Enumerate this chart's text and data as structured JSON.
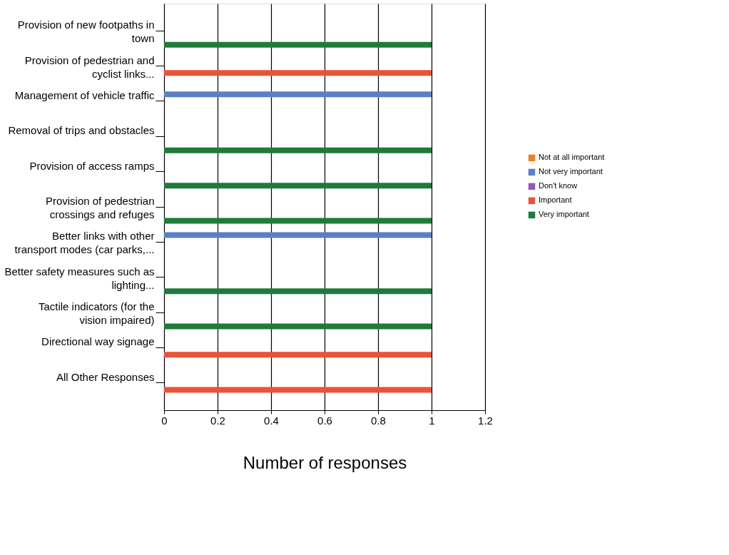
{
  "chart_data": {
    "type": "bar",
    "orientation": "horizontal",
    "xlabel": "Number of responses",
    "categories": [
      "Provision of new footpaths in town",
      "Provision of pedestrian and cyclist links...",
      "Management of vehicle traffic",
      "Removal of trips and obstacles",
      "Provision of access ramps",
      "Provision of pedestrian crossings and refuges",
      "Better links with other transport modes (car parks,...",
      "Better safety measures such as lighting...",
      "Tactile indicators (for the vision impaired)",
      "Directional way signage",
      "All Other Responses"
    ],
    "series": [
      {
        "name": "Not at all important",
        "color": "#f07f26",
        "values": [
          null,
          null,
          null,
          null,
          null,
          null,
          null,
          null,
          null,
          null,
          null
        ]
      },
      {
        "name": "Not very important",
        "color": "#5b7fc7",
        "values": [
          null,
          null,
          1,
          null,
          null,
          null,
          1,
          null,
          null,
          null,
          null
        ]
      },
      {
        "name": "Don't know",
        "color": "#8e5bb5",
        "values": [
          null,
          null,
          null,
          null,
          null,
          null,
          null,
          null,
          null,
          null,
          null
        ]
      },
      {
        "name": "Important",
        "color": "#e8533a",
        "values": [
          null,
          1,
          null,
          null,
          null,
          null,
          null,
          null,
          null,
          1,
          1
        ]
      },
      {
        "name": "Very important",
        "color": "#1f7a3c",
        "values": [
          1,
          null,
          null,
          1,
          1,
          1,
          null,
          1,
          1,
          null,
          null
        ]
      }
    ],
    "xlim": [
      0,
      1.2
    ],
    "xticks": [
      0,
      0.2,
      0.4,
      0.6,
      0.8,
      1,
      1.2
    ],
    "grid": "x",
    "legend": "right"
  }
}
